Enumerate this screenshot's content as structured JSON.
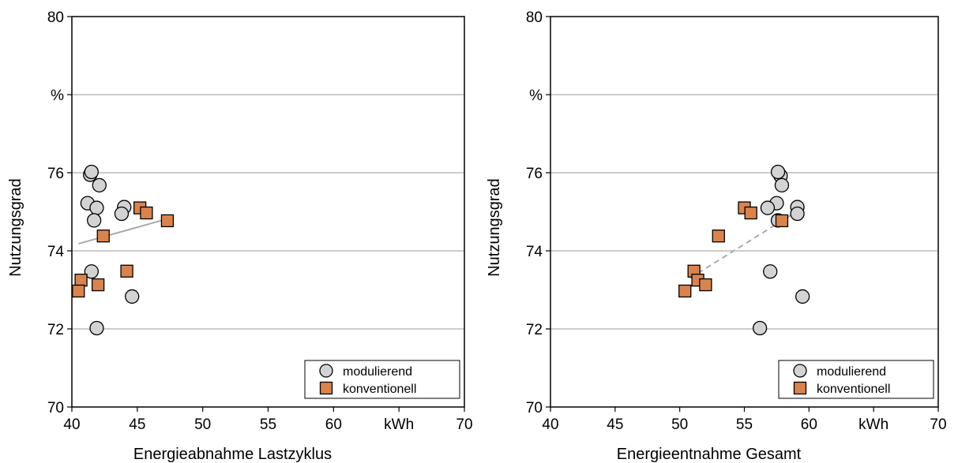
{
  "chart_data": [
    {
      "type": "scatter",
      "xlabel": "Energieabnahme Lastzyklus",
      "ylabel": "Nutzungsgrad",
      "xlim": [
        40,
        70
      ],
      "ylim": [
        70,
        80
      ],
      "x_ticks": [
        "40",
        "45",
        "50",
        "55",
        "60",
        "kWh",
        "70"
      ],
      "y_ticks": [
        "70",
        "72",
        "74",
        "76",
        "%",
        "80"
      ],
      "grid": "horizontal",
      "legend_position": "bottom-right",
      "series": [
        {
          "name": "modulierend",
          "marker": "circle",
          "color": "#d3d3d3",
          "points": [
            [
              41.4,
              75.95
            ],
            [
              41.5,
              76.02
            ],
            [
              42.1,
              75.68
            ],
            [
              41.2,
              75.22
            ],
            [
              41.9,
              75.1
            ],
            [
              41.7,
              74.78
            ],
            [
              44.0,
              75.12
            ],
            [
              43.8,
              74.95
            ],
            [
              41.5,
              73.47
            ],
            [
              44.6,
              72.83
            ],
            [
              41.9,
              72.02
            ]
          ]
        },
        {
          "name": "konventionell",
          "marker": "square",
          "color": "#d9844f",
          "points": [
            [
              45.2,
              75.1
            ],
            [
              45.7,
              74.97
            ],
            [
              47.3,
              74.77
            ],
            [
              42.4,
              74.38
            ],
            [
              44.2,
              73.48
            ],
            [
              40.7,
              73.25
            ],
            [
              42.0,
              73.13
            ],
            [
              40.5,
              72.97
            ]
          ]
        }
      ],
      "trendline": {
        "style": "solid",
        "color": "#aaaaaa",
        "x": [
          40.5,
          47.3
        ],
        "y": [
          74.18,
          74.82
        ]
      }
    },
    {
      "type": "scatter",
      "xlabel": "Energieentnahme Gesamt",
      "ylabel": "Nutzungsgrad",
      "xlim": [
        40,
        70
      ],
      "ylim": [
        70,
        80
      ],
      "x_ticks": [
        "40",
        "45",
        "50",
        "55",
        "60",
        "kWh",
        "70"
      ],
      "y_ticks": [
        "70",
        "72",
        "74",
        "76",
        "%",
        "80"
      ],
      "grid": "horizontal",
      "legend_position": "bottom-right",
      "series": [
        {
          "name": "modulierend",
          "marker": "circle",
          "color": "#d3d3d3",
          "points": [
            [
              57.8,
              75.92
            ],
            [
              57.6,
              76.02
            ],
            [
              57.9,
              75.68
            ],
            [
              57.5,
              75.22
            ],
            [
              56.8,
              75.1
            ],
            [
              59.1,
              75.12
            ],
            [
              59.1,
              74.95
            ],
            [
              57.6,
              74.78
            ],
            [
              57.0,
              73.47
            ],
            [
              59.5,
              72.83
            ],
            [
              56.2,
              72.02
            ]
          ]
        },
        {
          "name": "konventionell",
          "marker": "square",
          "color": "#d9844f",
          "points": [
            [
              55.0,
              75.1
            ],
            [
              55.5,
              74.97
            ],
            [
              57.9,
              74.77
            ],
            [
              53.0,
              74.38
            ],
            [
              51.1,
              73.48
            ],
            [
              51.4,
              73.25
            ],
            [
              52.0,
              73.13
            ],
            [
              50.4,
              72.97
            ]
          ]
        }
      ],
      "trendline": {
        "style": "dashed",
        "color": "#aaaaaa",
        "x": [
          50.8,
          59.4
        ],
        "y": [
          73.3,
          75.08
        ]
      }
    }
  ]
}
